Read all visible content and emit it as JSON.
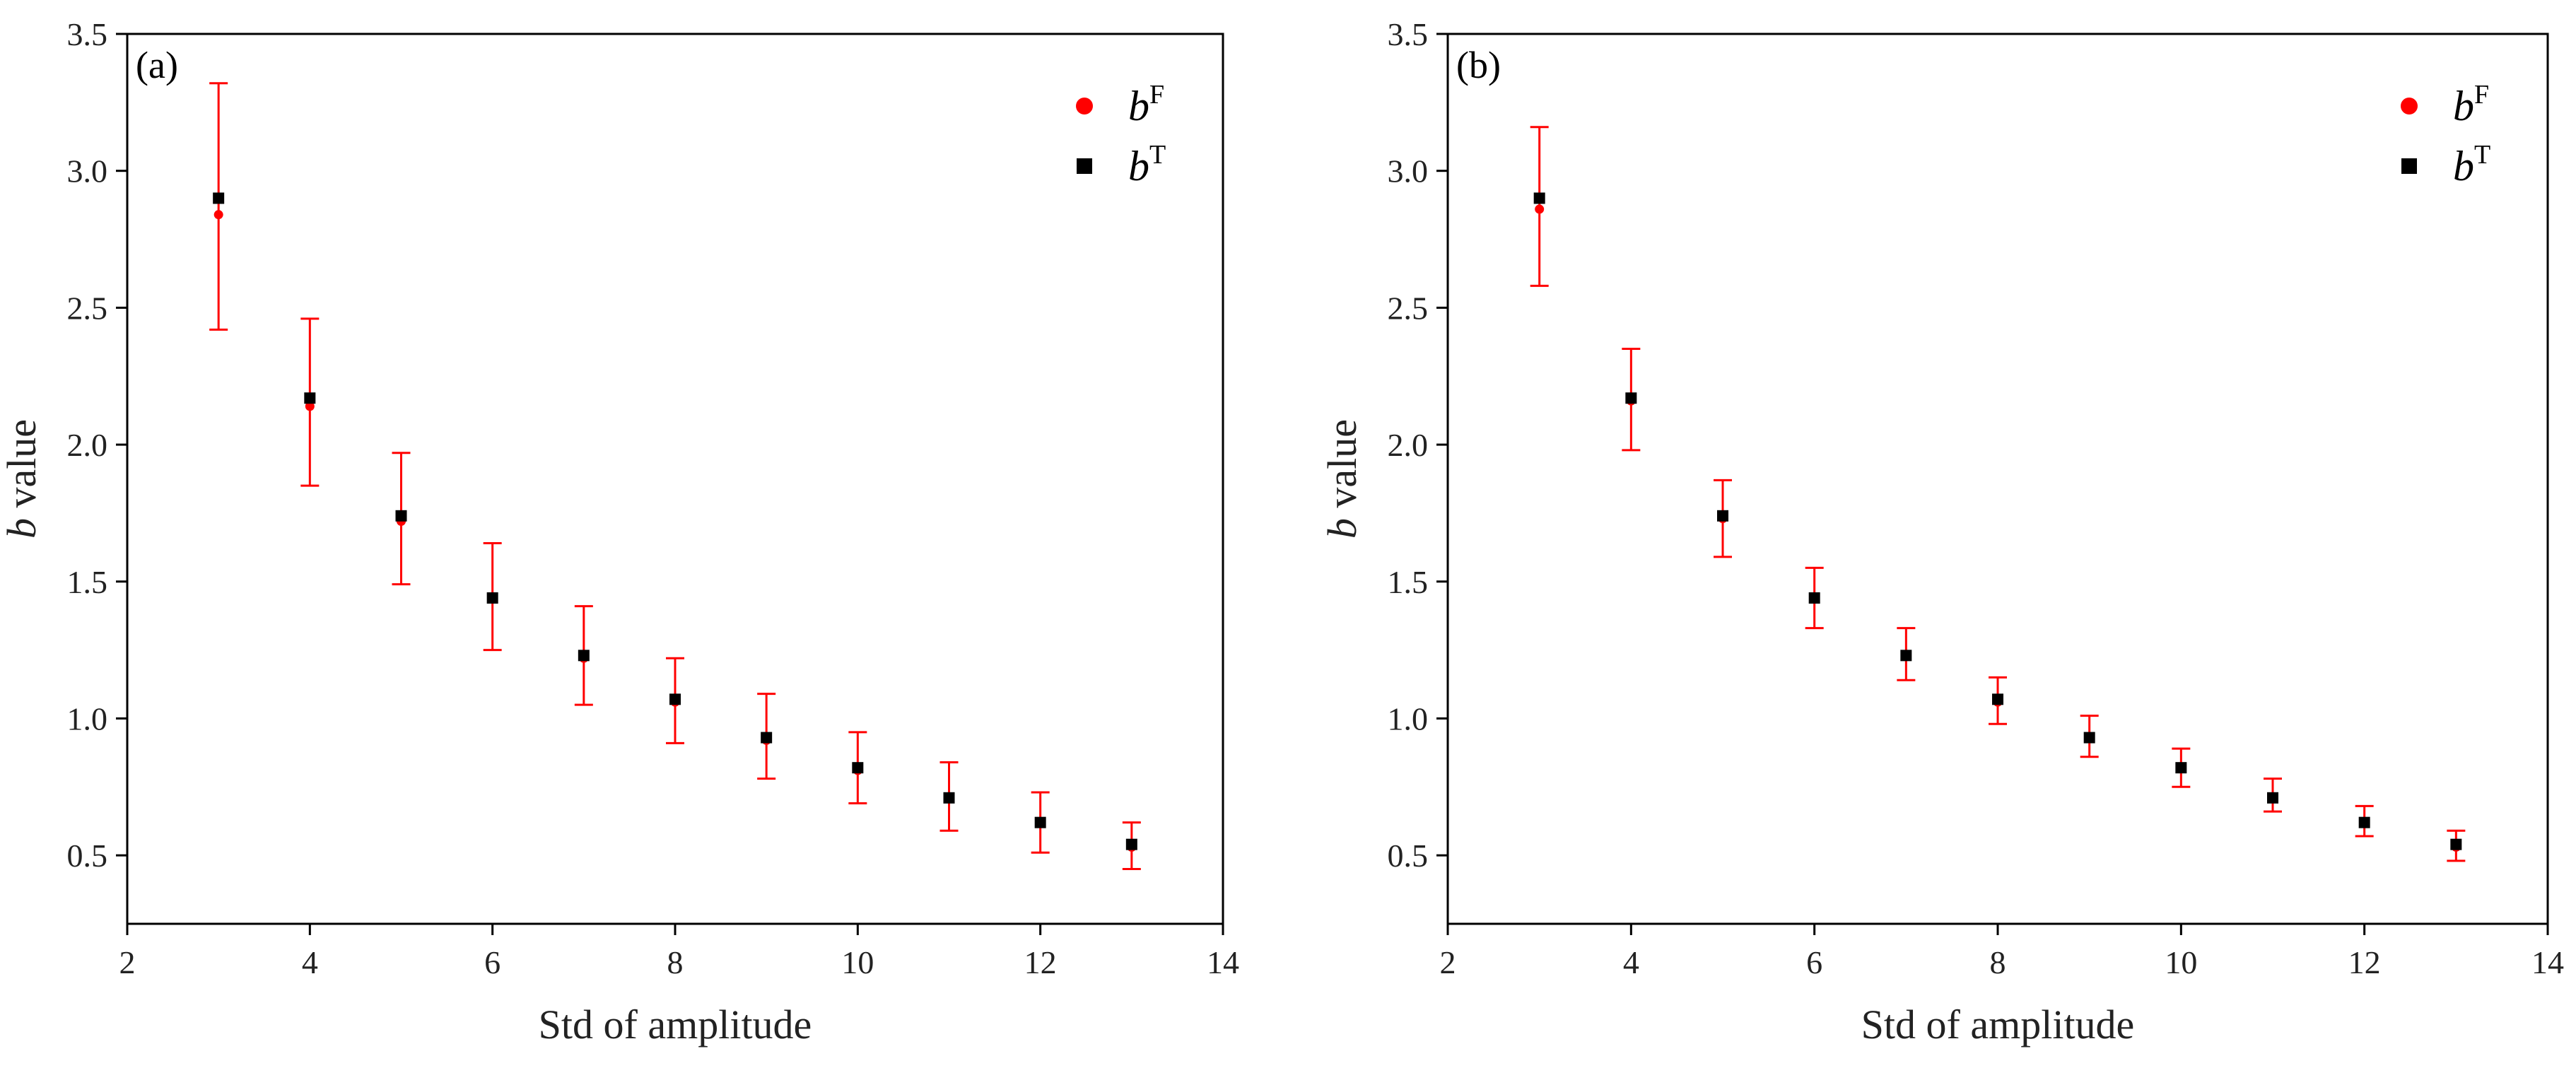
{
  "chart_data": [
    {
      "type": "scatter",
      "panel_label": "(a)",
      "xlabel": "Std of amplitude",
      "ylabel_var": "b",
      "ylabel_rest": " value",
      "xlim": [
        2,
        14
      ],
      "ylim": [
        0.25,
        3.5
      ],
      "xticks": [
        2,
        4,
        6,
        8,
        10,
        12,
        14
      ],
      "yticks": [
        0.5,
        1.0,
        1.5,
        2.0,
        2.5,
        3.0,
        3.5
      ],
      "ytick_labels": [
        "0.5",
        "1.0",
        "1.5",
        "2.0",
        "2.5",
        "3.0",
        "3.5"
      ],
      "legend_position": "top-right",
      "x": [
        3,
        4,
        5,
        6,
        7,
        8,
        9,
        10,
        11,
        12,
        13
      ],
      "series": [
        {
          "name": "bF",
          "label_var": "b",
          "label_sup": "F",
          "marker": "circle",
          "color": "#ff0000",
          "values": [
            2.84,
            2.14,
            1.72,
            1.44,
            1.22,
            1.06,
            0.92,
            0.81,
            0.71,
            0.62,
            0.53
          ],
          "err_low": [
            2.42,
            1.85,
            1.49,
            1.25,
            1.05,
            0.91,
            0.78,
            0.69,
            0.59,
            0.51,
            0.45
          ],
          "err_high": [
            3.32,
            2.46,
            1.97,
            1.64,
            1.41,
            1.22,
            1.09,
            0.95,
            0.84,
            0.73,
            0.62
          ]
        },
        {
          "name": "bT",
          "label_var": "b",
          "label_sup": "T",
          "marker": "square",
          "color": "#000000",
          "values": [
            2.9,
            2.17,
            1.74,
            1.44,
            1.23,
            1.07,
            0.93,
            0.82,
            0.71,
            0.62,
            0.54
          ]
        }
      ]
    },
    {
      "type": "scatter",
      "panel_label": "(b)",
      "xlabel": "Std of amplitude",
      "ylabel_var": "b",
      "ylabel_rest": " value",
      "xlim": [
        2,
        14
      ],
      "ylim": [
        0.25,
        3.5
      ],
      "xticks": [
        2,
        4,
        6,
        8,
        10,
        12,
        14
      ],
      "yticks": [
        0.5,
        1.0,
        1.5,
        2.0,
        2.5,
        3.0,
        3.5
      ],
      "ytick_labels": [
        "0.5",
        "1.0",
        "1.5",
        "2.0",
        "2.5",
        "3.0",
        "3.5"
      ],
      "legend_position": "top-right",
      "x": [
        3,
        4,
        5,
        6,
        7,
        8,
        9,
        10,
        11,
        12,
        13
      ],
      "series": [
        {
          "name": "bF",
          "label_var": "b",
          "label_sup": "F",
          "marker": "circle",
          "color": "#ff0000",
          "values": [
            2.86,
            2.16,
            1.73,
            1.44,
            1.23,
            1.06,
            0.93,
            0.82,
            0.71,
            0.62,
            0.53
          ],
          "err_low": [
            2.58,
            1.98,
            1.59,
            1.33,
            1.14,
            0.98,
            0.86,
            0.75,
            0.66,
            0.57,
            0.48
          ],
          "err_high": [
            3.16,
            2.35,
            1.87,
            1.55,
            1.33,
            1.15,
            1.01,
            0.89,
            0.78,
            0.68,
            0.59
          ]
        },
        {
          "name": "bT",
          "label_var": "b",
          "label_sup": "T",
          "marker": "square",
          "color": "#000000",
          "values": [
            2.9,
            2.17,
            1.74,
            1.44,
            1.23,
            1.07,
            0.93,
            0.82,
            0.71,
            0.62,
            0.54
          ]
        }
      ]
    }
  ]
}
